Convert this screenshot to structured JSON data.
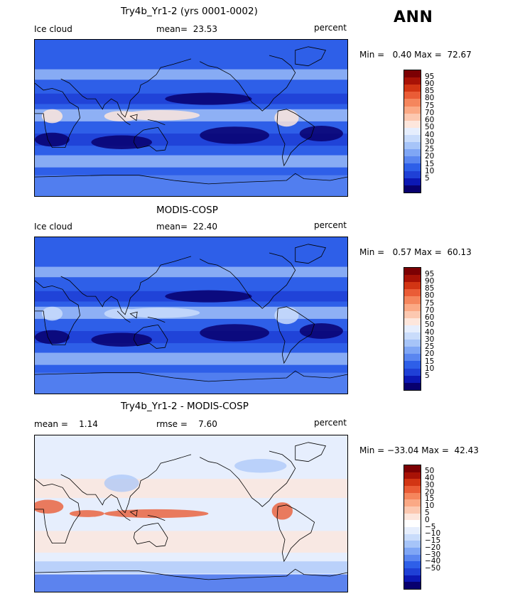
{
  "season": "ANN",
  "colors": {
    "abs": [
      "#08006e",
      "#0c18b4",
      "#1f40d6",
      "#2e5fe8",
      "#5a86f0",
      "#7fa6f5",
      "#a6c4f8",
      "#c9dcfb",
      "#e6eefd",
      "#fde6dc",
      "#fcc8b0",
      "#fba985",
      "#f5865d",
      "#ea5c36",
      "#d23514",
      "#a81206",
      "#7c0003"
    ],
    "diff": [
      "#08006e",
      "#0c18b4",
      "#1f40d6",
      "#2e5fe8",
      "#5a86f0",
      "#7fa6f5",
      "#a6c4f8",
      "#c9dcfb",
      "#e6eefd",
      "#ffffff",
      "#fde6dc",
      "#fcc8b0",
      "#fba985",
      "#f5865d",
      "#ea5c36",
      "#d23514",
      "#a81206",
      "#7c0003"
    ]
  },
  "panels": [
    {
      "title": "Try4b_Yr1-2 (yrs 0001-0002)",
      "left": "Ice cloud",
      "center": "mean=  23.53",
      "right": "percent",
      "minmax": "Min =   0.40 Max =  72.67",
      "kind": "abs",
      "mean": 23.53
    },
    {
      "title": "MODIS-COSP",
      "left": "Ice cloud",
      "center": "mean=  22.40",
      "right": "percent",
      "minmax": "Min =   0.57 Max =  60.13",
      "kind": "abs",
      "mean": 22.4
    },
    {
      "title": "Try4b_Yr1-2 - MODIS-COSP",
      "left": "mean =    1.14",
      "center": "rmse =    7.60",
      "right": "percent",
      "minmax": "Min = −33.04 Max =  42.43",
      "kind": "diff",
      "mean": 1.14
    }
  ],
  "colorbars": {
    "abs_labels": [
      "95",
      "90",
      "85",
      "80",
      "75",
      "70",
      "60",
      "50",
      "40",
      "30",
      "25",
      "20",
      "15",
      "10",
      "5"
    ],
    "diff_labels": [
      "50",
      "40",
      "30",
      "20",
      "15",
      "10",
      "5",
      "0",
      "−5",
      "−10",
      "−15",
      "−20",
      "−30",
      "−40",
      "−50"
    ]
  },
  "chart_data": [
    {
      "type": "heatmap",
      "title": "Try4b_Yr1-2 (yrs 0001-0002)",
      "variable": "Ice cloud",
      "units": "percent",
      "mean": 23.53,
      "min": 0.4,
      "max": 72.67,
      "levels": [
        5,
        10,
        15,
        20,
        25,
        30,
        40,
        50,
        60,
        70,
        75,
        80,
        85,
        90,
        95
      ]
    },
    {
      "type": "heatmap",
      "title": "MODIS-COSP",
      "variable": "Ice cloud",
      "units": "percent",
      "mean": 22.4,
      "min": 0.57,
      "max": 60.13,
      "levels": [
        5,
        10,
        15,
        20,
        25,
        30,
        40,
        50,
        60,
        70,
        75,
        80,
        85,
        90,
        95
      ]
    },
    {
      "type": "heatmap",
      "title": "Try4b_Yr1-2 - MODIS-COSP",
      "units": "percent",
      "mean": 1.14,
      "rmse": 7.6,
      "min": -33.04,
      "max": 42.43,
      "levels": [
        -50,
        -40,
        -30,
        -20,
        -15,
        -10,
        -5,
        0,
        5,
        10,
        15,
        20,
        30,
        40,
        50
      ]
    }
  ]
}
